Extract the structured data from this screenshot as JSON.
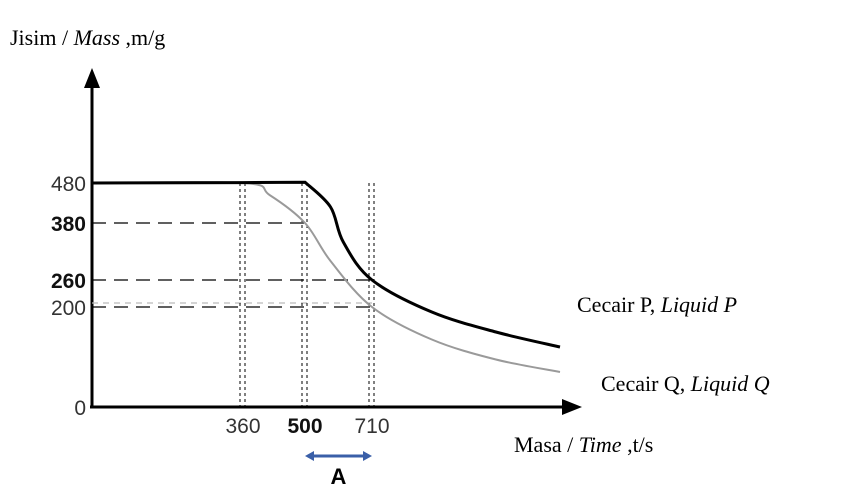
{
  "chart_data": {
    "type": "line",
    "ylabel": {
      "main": "Jisim / ",
      "italic": "Mass",
      "unit": " ,m/g"
    },
    "xlabel": {
      "main": "Masa / ",
      "italic": "Time",
      "unit": " ,t/s"
    },
    "yticks": [
      {
        "value": 0,
        "label": "0",
        "bold": false
      },
      {
        "value": 200,
        "label": "200",
        "bold": false
      },
      {
        "value": 260,
        "label": "260",
        "bold": true
      },
      {
        "value": 380,
        "label": "380",
        "bold": true
      },
      {
        "value": 480,
        "label": "480",
        "bold": false
      }
    ],
    "xticks": [
      {
        "value": 360,
        "label": "360",
        "bold": false
      },
      {
        "value": 500,
        "label": "500",
        "bold": true
      },
      {
        "value": 710,
        "label": "710",
        "bold": false
      }
    ],
    "series": [
      {
        "name": {
          "main": "Cecair P, ",
          "italic": "Liquid P"
        },
        "color": "#000000",
        "points": [
          [
            0,
            480
          ],
          [
            360,
            481
          ],
          [
            500,
            482
          ],
          [
            580,
            420
          ],
          [
            620,
            340
          ],
          [
            710,
            260
          ],
          [
            850,
            190
          ],
          [
            1000,
            150
          ],
          [
            1150,
            120
          ]
        ]
      },
      {
        "name": {
          "main": "Cecair Q, ",
          "italic": "Liquid Q"
        },
        "color": "#9a9a9a",
        "points": [
          [
            0,
            480
          ],
          [
            360,
            480
          ],
          [
            420,
            450
          ],
          [
            500,
            380
          ],
          [
            580,
            300
          ],
          [
            710,
            200
          ],
          [
            850,
            135
          ],
          [
            1000,
            95
          ],
          [
            1150,
            70
          ]
        ]
      }
    ],
    "interval_label": "A",
    "interval": [
      500,
      710
    ],
    "interval_color": "#3a5fa8"
  }
}
